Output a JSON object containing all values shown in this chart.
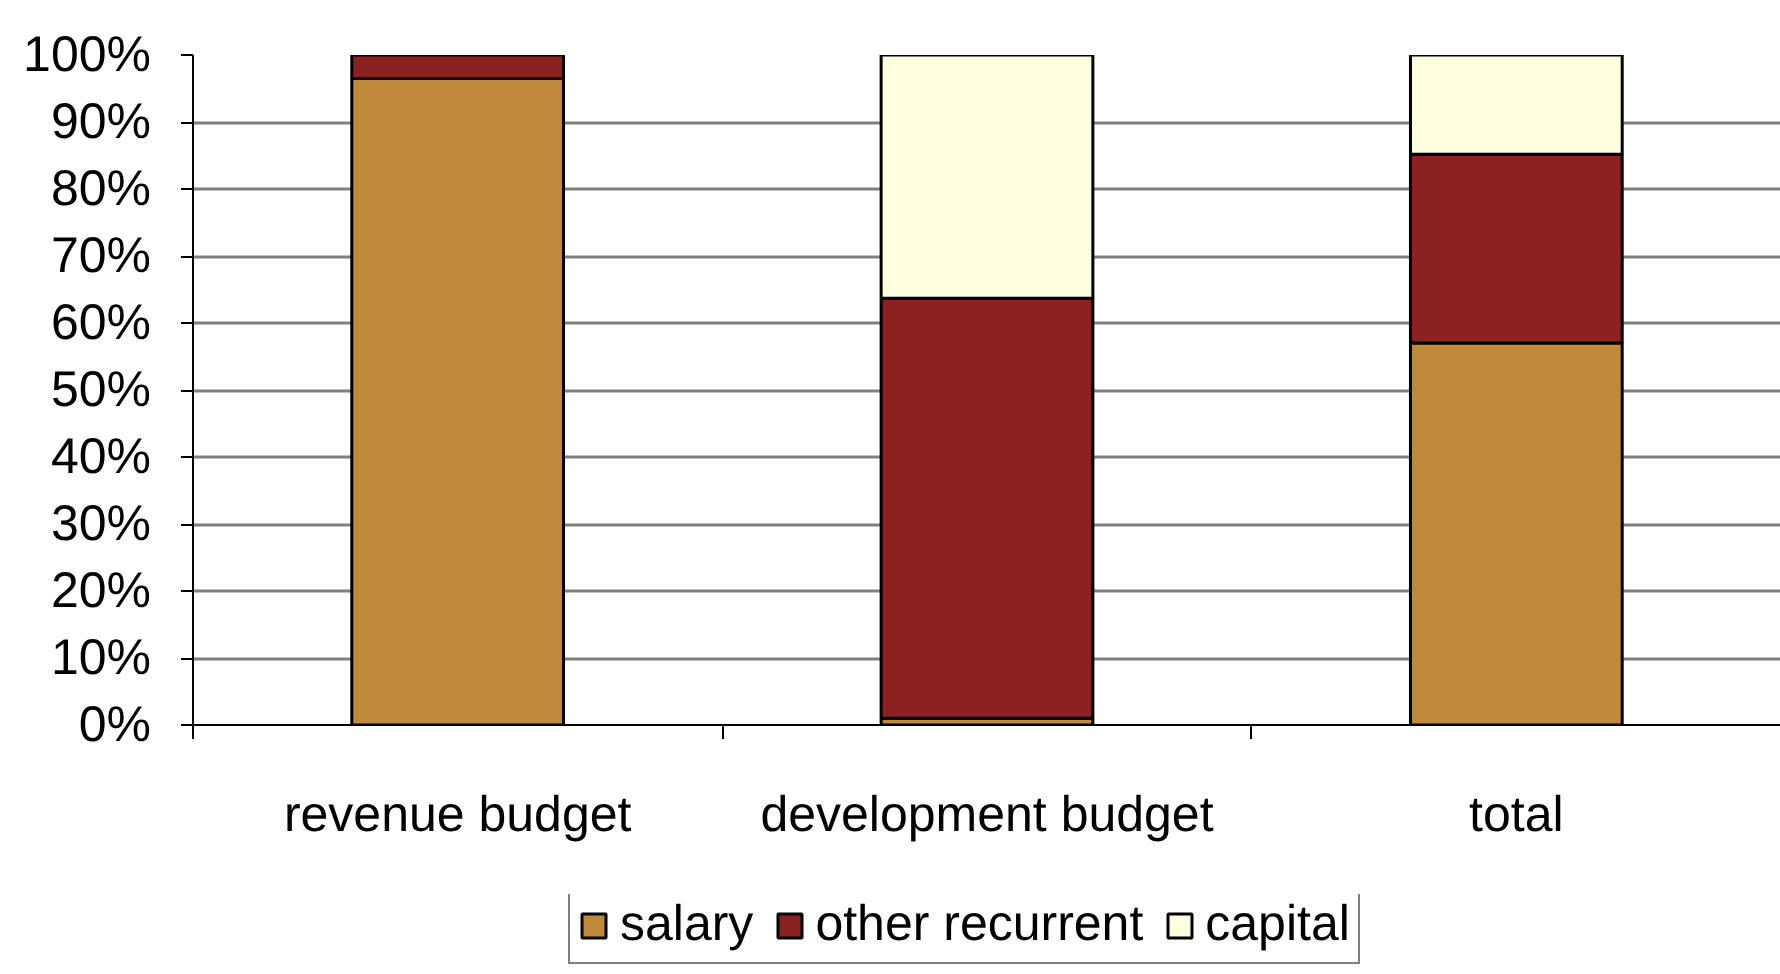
{
  "chart_data": {
    "type": "bar",
    "stacked": true,
    "categories": [
      "revenue budget",
      "development budget",
      "total"
    ],
    "series": [
      {
        "name": "salary",
        "color": "#c0883a",
        "values": [
          96.5,
          1,
          57
        ]
      },
      {
        "name": "other recurrent",
        "color": "#8b2121",
        "values": [
          3.5,
          62.7,
          28.2
        ]
      },
      {
        "name": "capital",
        "color": "#ffffdf",
        "values": [
          0,
          36.3,
          14.8
        ]
      }
    ],
    "ylim": [
      0,
      100
    ],
    "yticks": [
      {
        "value": 0,
        "label": "0%"
      },
      {
        "value": 10,
        "label": "10%"
      },
      {
        "value": 20,
        "label": "20%"
      },
      {
        "value": 30,
        "label": "30%"
      },
      {
        "value": 40,
        "label": "40%"
      },
      {
        "value": 50,
        "label": "50%"
      },
      {
        "value": 60,
        "label": "60%"
      },
      {
        "value": 70,
        "label": "70%"
      },
      {
        "value": 80,
        "label": "80%"
      },
      {
        "value": 90,
        "label": "90%"
      },
      {
        "value": 100,
        "label": "100%"
      }
    ],
    "grid": "y",
    "legend": "bottom"
  }
}
